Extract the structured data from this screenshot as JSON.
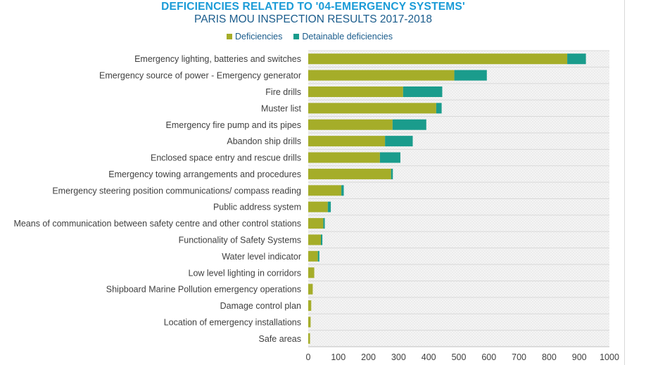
{
  "chart_data": {
    "type": "bar",
    "orientation": "horizontal",
    "stacked": true,
    "title": "DEFICIENCIES RELATED TO '04-EMERGENCY SYSTEMS'",
    "subtitle": "PARIS MOU INSPECTION RESULTS 2017-2018",
    "categories": [
      "Emergency lighting, batteries and switches",
      "Emergency source of power - Emergency generator",
      "Fire drills",
      "Muster list",
      "Emergency fire pump and its pipes",
      "Abandon ship drills",
      "Enclosed space entry and rescue drills",
      "Emergency towing arrangements and procedures",
      "Emergency steering position communications/ compass reading",
      "Public address system",
      "Means of communication between safety centre and other control stations",
      "Functionality of Safety Systems",
      "Water level indicator",
      "Low level lighting in corridors",
      "Shipboard Marine Pollution emergency operations",
      "Damage control plan",
      "Location of emergency installations",
      "Safe areas"
    ],
    "series": [
      {
        "name": "Deficiencies",
        "values": [
          860,
          485,
          315,
          425,
          280,
          255,
          238,
          275,
          110,
          65,
          50,
          42,
          32,
          20,
          15,
          10,
          8,
          6
        ]
      },
      {
        "name": "Detainable deficiencies",
        "values": [
          62,
          108,
          130,
          18,
          112,
          92,
          68,
          6,
          8,
          10,
          5,
          5,
          5,
          0,
          0,
          0,
          0,
          0
        ]
      }
    ],
    "colors": {
      "Deficiencies": "#a5ad29",
      "Detainable deficiencies": "#1a9c8c"
    },
    "xlim": [
      0,
      1000
    ],
    "xticks": [
      0,
      100,
      200,
      300,
      400,
      500,
      600,
      700,
      800,
      900,
      1000
    ],
    "legend_position": "top",
    "grid": true,
    "xlabel": "",
    "ylabel": ""
  }
}
